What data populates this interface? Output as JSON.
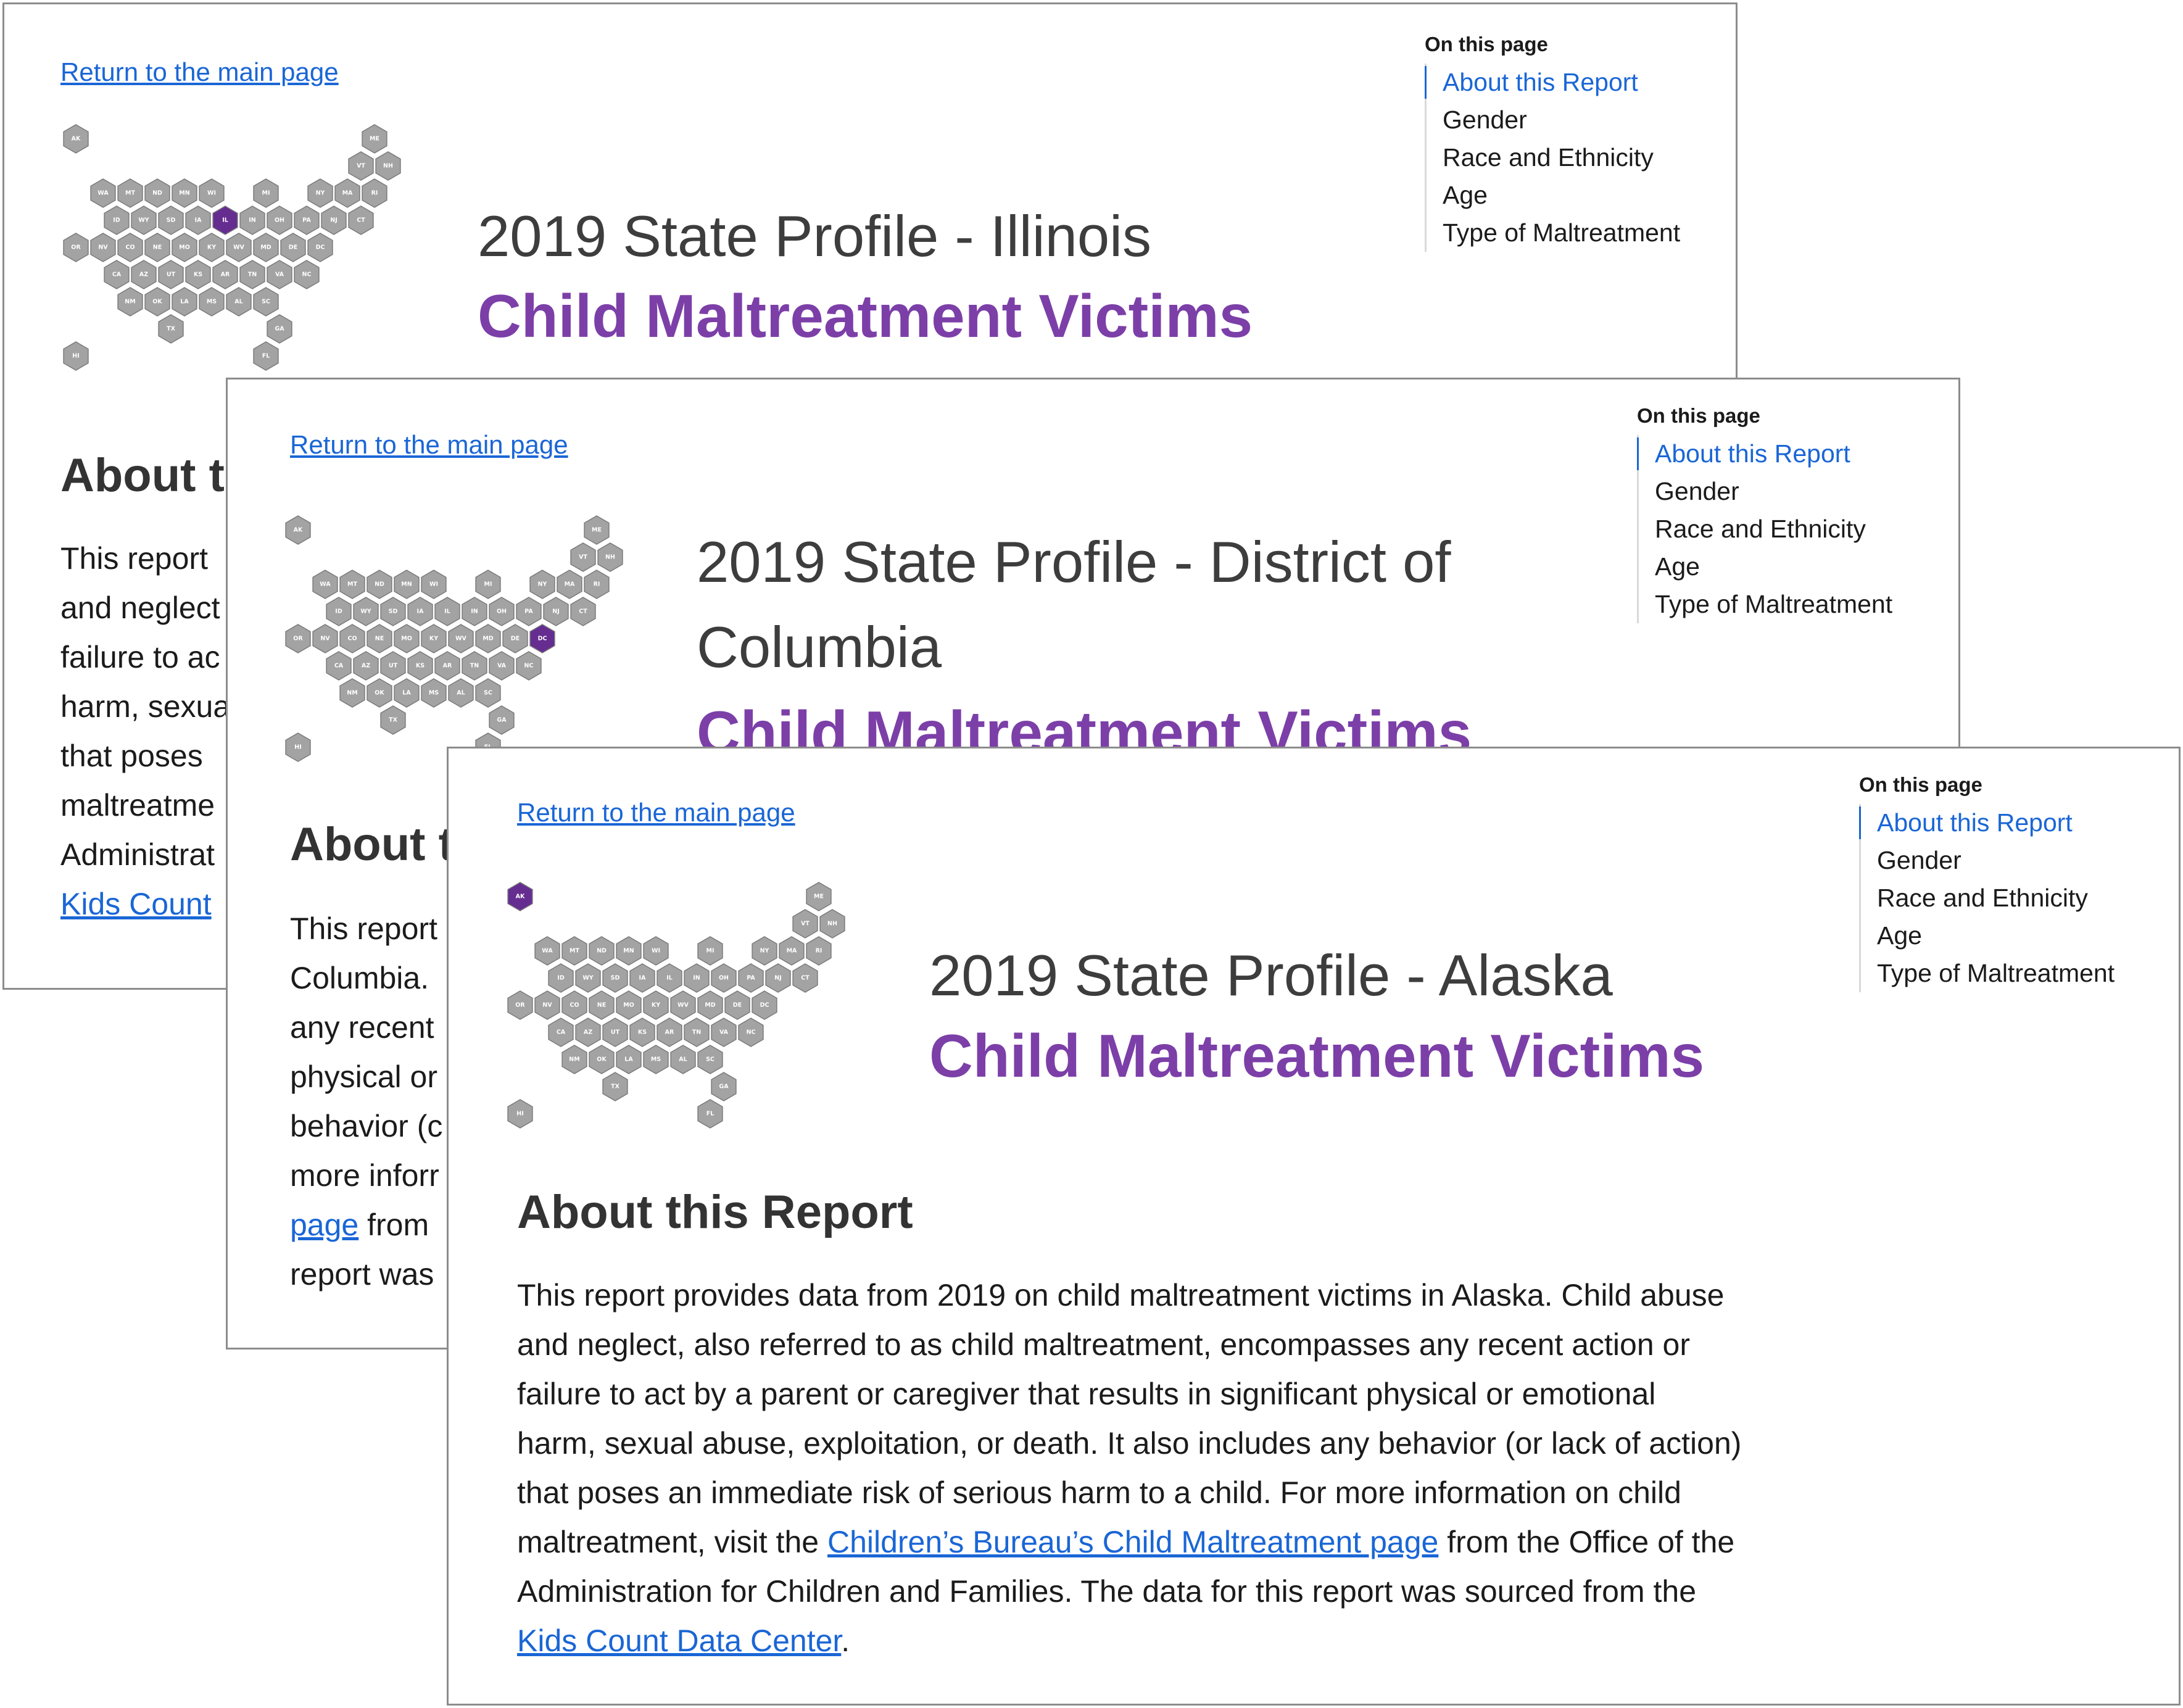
{
  "common": {
    "return_link": "Return to the main page",
    "toc_heading": "On this page",
    "toc_items": [
      "About this Report",
      "Gender",
      "Race and Ethnicity",
      "Age",
      "Type of Maltreatment"
    ],
    "report_title": "Child Maltreatment Victims",
    "section_heading": "About this Report"
  },
  "colors": {
    "hex_default": "#a3a3a3",
    "hex_highlight": "#662d91",
    "title_purple": "#7c3fa8",
    "link_blue": "#1a66d6"
  },
  "hexmap_states": [
    "AK",
    "ME",
    "VT",
    "NH",
    "WA",
    "MT",
    "ND",
    "MN",
    "WI",
    "MI",
    "NY",
    "MA",
    "RI",
    "ID",
    "WY",
    "SD",
    "IA",
    "IL",
    "IN",
    "OH",
    "PA",
    "NJ",
    "CT",
    "OR",
    "NV",
    "CO",
    "NE",
    "MO",
    "KY",
    "WV",
    "MD",
    "DE",
    "DC",
    "CA",
    "AZ",
    "UT",
    "KS",
    "AR",
    "TN",
    "VA",
    "NC",
    "NM",
    "OK",
    "LA",
    "MS",
    "AL",
    "SC",
    "TX",
    "GA",
    "HI",
    "FL"
  ],
  "windows": [
    {
      "highlight_state": "IL",
      "profile_title": "2019 State Profile - Illinois",
      "body_lines": [
        {
          "text": "This report"
        },
        {
          "text": "and neglect"
        },
        {
          "text": "failure to ac"
        },
        {
          "text": "harm, sexua"
        },
        {
          "text": "that poses"
        },
        {
          "text": "maltreatme"
        },
        {
          "text": "Administrat"
        },
        {
          "link": "Kids Count"
        }
      ]
    },
    {
      "highlight_state": "DC",
      "profile_title_lines": [
        "2019 State Profile - District of",
        "Columbia"
      ],
      "body_lines": [
        {
          "text": "This report"
        },
        {
          "text": "Columbia."
        },
        {
          "text": "any recent"
        },
        {
          "text": "physical or"
        },
        {
          "text": "behavior (c"
        },
        {
          "text": "more inforr"
        },
        {
          "link": "page",
          "after": " from"
        },
        {
          "text": "report was"
        }
      ]
    },
    {
      "highlight_state": "AK",
      "profile_title": "2019 State Profile - Alaska",
      "body_lines": [
        {
          "text": "This report provides data from 2019 on child maltreatment victims in Alaska. Child abuse"
        },
        {
          "text": "and neglect, also referred to as child maltreatment, encompasses any recent action or"
        },
        {
          "text": "failure to act by a parent or caregiver that results in significant physical or emotional"
        },
        {
          "text": "harm, sexual abuse, exploitation, or death. It also includes any behavior (or lack of action)"
        },
        {
          "text": "that poses an immediate risk of serious harm to a child. For more information on child"
        },
        {
          "before": "maltreatment, visit the ",
          "link": "Children’s Bureau’s Child Maltreatment page",
          "after": " from the Office of the"
        },
        {
          "text": "Administration for Children and Families. The data for this report was sourced from the"
        },
        {
          "link": "Kids Count Data Center",
          "after": "."
        }
      ]
    }
  ]
}
